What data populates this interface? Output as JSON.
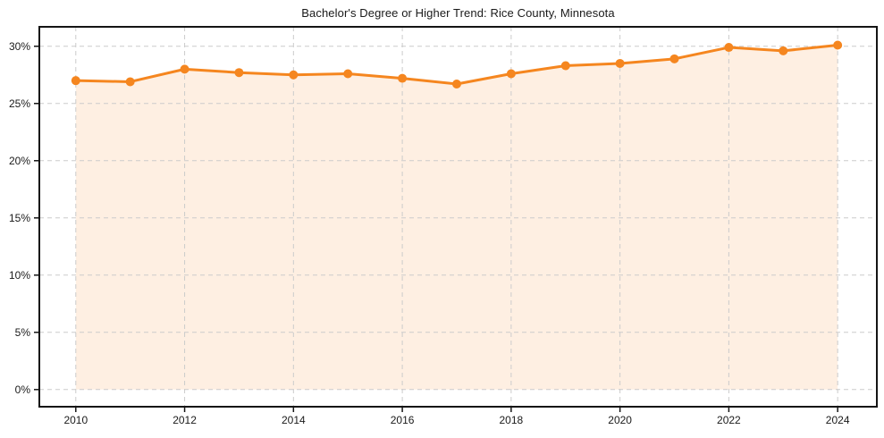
{
  "chart_data": {
    "type": "line",
    "title": "Bachelor's Degree or Higher Trend: Rice County, Minnesota",
    "x": [
      2010,
      2011,
      2012,
      2013,
      2014,
      2015,
      2016,
      2017,
      2018,
      2019,
      2020,
      2021,
      2022,
      2023,
      2024
    ],
    "values": [
      27.0,
      26.9,
      28.0,
      27.7,
      27.5,
      27.6,
      27.2,
      26.7,
      27.6,
      28.3,
      28.5,
      28.9,
      29.9,
      29.6,
      30.1
    ],
    "xlabel": "",
    "ylabel": "",
    "xlim": [
      2009.33,
      2024.72
    ],
    "ylim": [
      -1.5,
      31.7
    ],
    "xticks": [
      2010,
      2012,
      2014,
      2016,
      2018,
      2020,
      2022,
      2024
    ],
    "yticks": [
      0,
      5,
      10,
      15,
      20,
      25,
      30
    ],
    "ytick_suffix": "%",
    "grid": true,
    "grid_style": "dashed",
    "legend_position": "none",
    "marker": "circle",
    "area_fill": true,
    "colors": {
      "line": "#f5861f",
      "marker": "#f5861f",
      "fill": "rgba(245, 134, 31, 0.13)",
      "grid": "#cbcbcb",
      "axis": "#141414",
      "tick_label": "#1a1a1a",
      "title": "#1a1a1a",
      "background": "#ffffff"
    }
  }
}
